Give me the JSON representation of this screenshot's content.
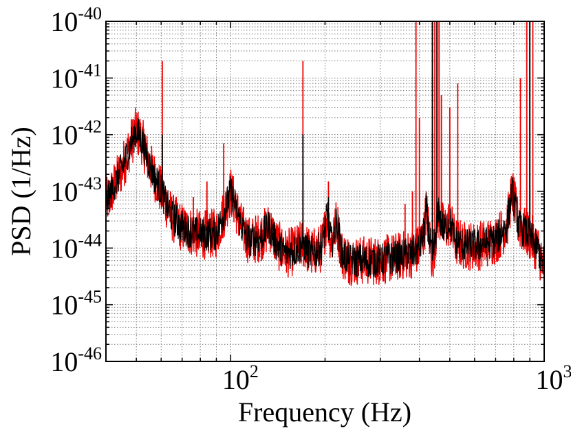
{
  "chart_data": {
    "type": "line",
    "title": "",
    "xlabel": "Frequency (Hz)",
    "ylabel": "PSD (1/Hz)",
    "xscale": "log",
    "yscale": "log",
    "xlim": [
      40,
      1000
    ],
    "ylim": [
      1e-46,
      1e-40
    ],
    "grid": true,
    "x_ticks": [
      {
        "value": 100,
        "base": "10",
        "exp": "2"
      },
      {
        "value": 1000,
        "base": "10",
        "exp": "3"
      }
    ],
    "y_ticks": [
      {
        "value": 1e-40,
        "base": "10",
        "exp": "-40"
      },
      {
        "value": 1e-41,
        "base": "10",
        "exp": "-41"
      },
      {
        "value": 1e-42,
        "base": "10",
        "exp": "-42"
      },
      {
        "value": 1e-43,
        "base": "10",
        "exp": "-43"
      },
      {
        "value": 1e-44,
        "base": "10",
        "exp": "-44"
      },
      {
        "value": 1e-45,
        "base": "10",
        "exp": "-45"
      },
      {
        "value": 1e-46,
        "base": "10",
        "exp": "-46"
      }
    ],
    "series": [
      {
        "color": "#ee0000",
        "spread": 0.55,
        "x": [
          40,
          45,
          48,
          50,
          52,
          55,
          60,
          65,
          70,
          80,
          90,
          95,
          100,
          103,
          108,
          115,
          125,
          133,
          140,
          150,
          160,
          170,
          180,
          195,
          203,
          210,
          218,
          226,
          240,
          260,
          300,
          340,
          380,
          400,
          415,
          420,
          440,
          460,
          480,
          500,
          520,
          560,
          620,
          700,
          760,
          790,
          830,
          900,
          960,
          1000
        ],
        "y": [
          6e-44,
          2.5e-43,
          7e-43,
          1.2e-42,
          8e-43,
          3e-43,
          1e-43,
          3.5e-44,
          2.3e-44,
          1.7e-44,
          1.8e-44,
          4e-44,
          1e-43,
          6e-44,
          2.4e-44,
          1.3e-44,
          1.6e-44,
          2.4e-44,
          1.2e-44,
          8e-45,
          9e-45,
          1.2e-44,
          8e-45,
          1e-44,
          3.6e-44,
          1.2e-44,
          3e-44,
          8e-45,
          6e-45,
          6e-45,
          6e-45,
          7e-45,
          8e-45,
          1e-44,
          2e-44,
          5e-44,
          6e-45,
          4e-44,
          2e-44,
          3e-44,
          1.3e-44,
          1.1e-44,
          1.1e-44,
          1.4e-44,
          2.5e-44,
          1e-43,
          2.5e-44,
          1.6e-44,
          9e-45,
          4e-45
        ],
        "peaks": [
          {
            "x": 60.5,
            "y": 2e-41
          },
          {
            "x": 170,
            "y": 2e-41
          },
          {
            "x": 95,
            "y": 7e-43
          },
          {
            "x": 84,
            "y": 1.5e-43
          },
          {
            "x": 76,
            "y": 8e-44
          },
          {
            "x": 66,
            "y": 5e-44
          },
          {
            "x": 205,
            "y": 1.5e-43
          },
          {
            "x": 360,
            "y": 6e-44
          },
          {
            "x": 380,
            "y": 1e-43
          },
          {
            "x": 390,
            "y": 1e-40
          },
          {
            "x": 400,
            "y": 2e-42
          },
          {
            "x": 440,
            "y": 1e-40
          },
          {
            "x": 448,
            "y": 1e-40
          },
          {
            "x": 455,
            "y": 1e-40
          },
          {
            "x": 462,
            "y": 1e-40
          },
          {
            "x": 470,
            "y": 5e-42
          },
          {
            "x": 500,
            "y": 3e-42
          },
          {
            "x": 530,
            "y": 8e-42
          },
          {
            "x": 880,
            "y": 1e-40
          },
          {
            "x": 900,
            "y": 1e-40
          },
          {
            "x": 920,
            "y": 1e-40
          },
          {
            "x": 840,
            "y": 1e-41
          }
        ]
      },
      {
        "color": "#000000",
        "spread": 0.38,
        "x": [
          40,
          45,
          48,
          50,
          52,
          55,
          60,
          65,
          70,
          80,
          90,
          95,
          100,
          103,
          108,
          115,
          125,
          133,
          140,
          150,
          160,
          170,
          180,
          195,
          203,
          210,
          218,
          226,
          240,
          260,
          300,
          340,
          380,
          400,
          415,
          420,
          440,
          460,
          480,
          500,
          520,
          560,
          620,
          700,
          760,
          790,
          830,
          900,
          960,
          1000
        ],
        "y": [
          6e-44,
          2.5e-43,
          7e-43,
          1.2e-42,
          8e-43,
          3e-43,
          1e-43,
          3.5e-44,
          2.3e-44,
          1.7e-44,
          1.8e-44,
          4e-44,
          1e-43,
          6e-44,
          2.4e-44,
          1.3e-44,
          1.6e-44,
          2.4e-44,
          1.2e-44,
          8e-45,
          9e-45,
          1.2e-44,
          8e-45,
          1e-44,
          3.6e-44,
          1.2e-44,
          3e-44,
          8e-45,
          6e-45,
          6e-45,
          6e-45,
          7e-45,
          8e-45,
          1e-44,
          2e-44,
          5e-44,
          6e-45,
          4e-44,
          2e-44,
          3e-44,
          1.3e-44,
          1.1e-44,
          1.1e-44,
          1.4e-44,
          2.5e-44,
          1e-43,
          2.5e-44,
          1.6e-44,
          9e-45,
          4e-45
        ],
        "peaks": [
          {
            "x": 60.5,
            "y": 1e-42
          },
          {
            "x": 170,
            "y": 1e-42
          },
          {
            "x": 205,
            "y": 8e-44
          },
          {
            "x": 440,
            "y": 1e-40
          },
          {
            "x": 455,
            "y": 1e-40
          },
          {
            "x": 900,
            "y": 1e-40
          }
        ]
      }
    ]
  }
}
